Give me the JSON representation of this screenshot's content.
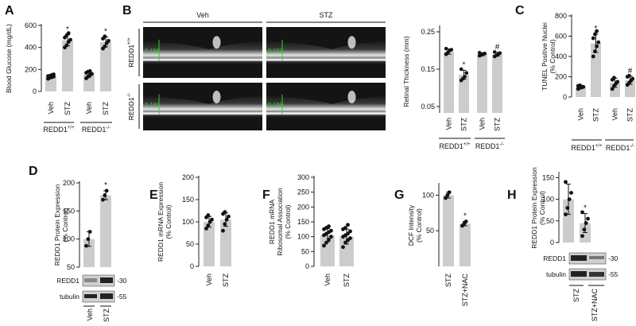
{
  "panels": {
    "A": {
      "letter": "A",
      "ylabel": "Blood Glucose (mg/dL)",
      "yticks": [
        "0",
        "200",
        "400",
        "600"
      ],
      "groups": [
        {
          "label": "Veh",
          "value": 135,
          "points": [
            115,
            125,
            130,
            135,
            140,
            142,
            150,
            155
          ],
          "err": 15,
          "mark": ""
        },
        {
          "label": "STZ",
          "value": 465,
          "points": [
            400,
            420,
            450,
            470,
            490,
            510,
            530
          ],
          "err": 50,
          "mark": "*"
        },
        {
          "label": "Veh",
          "value": 155,
          "points": [
            120,
            135,
            150,
            160,
            170,
            180,
            185
          ],
          "err": 25,
          "mark": ""
        },
        {
          "label": "STZ",
          "value": 450,
          "points": [
            390,
            410,
            440,
            460,
            480,
            500
          ],
          "err": 45,
          "mark": "*"
        }
      ],
      "genotypes": [
        "REDD1",
        "REDD1"
      ],
      "genotype_sups": [
        "+/+",
        "-/-"
      ]
    },
    "B": {
      "letter": "B",
      "col_labels": [
        "Veh",
        "STZ"
      ],
      "row_labels": [
        "REDD1",
        "REDD1"
      ],
      "row_sups": [
        "+/+",
        "-/-"
      ],
      "measurements": [
        "0.198",
        "0.122",
        "0.183",
        "0.188"
      ],
      "chart": {
        "ylabel": "Retinal Thickness (mm)",
        "yticks": [
          "0.05",
          "0.15",
          "0.25"
        ],
        "groups": [
          {
            "label": "Veh",
            "value": 0.197,
            "points": [
              0.19,
              0.195,
              0.2,
              0.202,
              0.205
            ],
            "err": 0.007,
            "mark": ""
          },
          {
            "label": "STZ",
            "value": 0.135,
            "points": [
              0.12,
              0.125,
              0.13,
              0.14,
              0.15
            ],
            "err": 0.012,
            "mark": "*"
          },
          {
            "label": "Veh",
            "value": 0.19,
            "points": [
              0.186,
              0.188,
              0.19,
              0.192,
              0.194
            ],
            "err": 0.004,
            "mark": ""
          },
          {
            "label": "STZ",
            "value": 0.19,
            "points": [
              0.184,
              0.187,
              0.19,
              0.193,
              0.196
            ],
            "err": 0.005,
            "mark": "#"
          }
        ],
        "genotypes": [
          "REDD1",
          "REDD1"
        ],
        "genotype_sups": [
          "+/+",
          "-/-"
        ]
      }
    },
    "C": {
      "letter": "C",
      "ylabel": "TUNEL Positive Nuclei (% Control)",
      "ylabel_lines": [
        "TUNEL Positive Nuclei",
        "(% Control)"
      ],
      "yticks": [
        "0",
        "200",
        "400",
        "600",
        "800"
      ],
      "groups": [
        {
          "label": "Veh",
          "value": 100,
          "points": [
            80,
            90,
            95,
            100,
            110,
            115
          ],
          "err": 15,
          "mark": ""
        },
        {
          "label": "STZ",
          "value": 530,
          "points": [
            400,
            450,
            500,
            540,
            580,
            620,
            650
          ],
          "err": 90,
          "mark": "*"
        },
        {
          "label": "Veh",
          "value": 140,
          "points": [
            80,
            110,
            130,
            150,
            170,
            190
          ],
          "err": 45,
          "mark": ""
        },
        {
          "label": "STZ",
          "value": 165,
          "points": [
            120,
            140,
            160,
            180,
            200,
            210
          ],
          "err": 40,
          "mark": "#"
        }
      ],
      "genotypes": [
        "REDD1",
        "REDD1"
      ],
      "genotype_sups": [
        "+/+",
        "-/-"
      ]
    },
    "D": {
      "letter": "D",
      "ylabel_lines": [
        "REDD1 Protein Expression",
        "(% Control)"
      ],
      "yticks": [
        "50",
        "100",
        "150",
        "200"
      ],
      "groups": [
        {
          "label": "Veh",
          "value": 100,
          "points": [
            88,
            100,
            113
          ],
          "err": 13,
          "mark": ""
        },
        {
          "label": "STZ",
          "value": 178,
          "points": [
            170,
            178,
            186
          ],
          "err": 8,
          "mark": "*"
        }
      ],
      "blots": [
        "REDD1",
        "tubulin"
      ],
      "mw": [
        "-30",
        "-55"
      ]
    },
    "E": {
      "letter": "E",
      "ylabel_lines": [
        "REDD1 mRNA Expression",
        "(% Control)"
      ],
      "yticks": [
        "0",
        "50",
        "100",
        "150",
        "200"
      ],
      "groups": [
        {
          "label": "Veh",
          "value": 100,
          "points": [
            85,
            92,
            100,
            105,
            110,
            115
          ],
          "err": 12,
          "mark": ""
        },
        {
          "label": "STZ",
          "value": 105,
          "points": [
            80,
            95,
            105,
            112,
            118,
            122
          ],
          "err": 15,
          "mark": ""
        }
      ]
    },
    "F": {
      "letter": "F",
      "ylabel_lines": [
        "REDD1 mRNA",
        "Ribosomal Association",
        "(% Control)"
      ],
      "yticks": [
        "0",
        "50",
        "100",
        "150",
        "200",
        "250",
        "300"
      ],
      "groups": [
        {
          "label": "Veh",
          "value": 105,
          "points": [
            70,
            80,
            90,
            100,
            105,
            110,
            115,
            120,
            125,
            130,
            135
          ],
          "err": 22,
          "mark": ""
        },
        {
          "label": "STZ",
          "value": 100,
          "points": [
            65,
            80,
            88,
            95,
            100,
            105,
            110,
            118,
            125,
            130,
            140
          ],
          "err": 25,
          "mark": ""
        }
      ]
    },
    "G": {
      "letter": "G",
      "ylabel_lines": [
        "DCF Intensity",
        "(% Control)"
      ],
      "yticks": [
        "50",
        "100"
      ],
      "groups": [
        {
          "label": "STZ",
          "value": 100,
          "points": [
            96,
            100,
            104
          ],
          "err": 4,
          "mark": ""
        },
        {
          "label": "STZ+NAC",
          "value": 60,
          "points": [
            57,
            60,
            63
          ],
          "err": 3,
          "mark": "*"
        }
      ]
    },
    "H": {
      "letter": "H",
      "ylabel_lines": [
        "REDD1 Protein Expression",
        "(% Control)"
      ],
      "yticks": [
        "0",
        "50",
        "100",
        "150"
      ],
      "groups": [
        {
          "label": "STZ",
          "value": 100,
          "points": [
            65,
            80,
            100,
            115,
            140
          ],
          "err": 35,
          "mark": ""
        },
        {
          "label": "STZ+NAC",
          "value": 45,
          "points": [
            15,
            30,
            45,
            55,
            70
          ],
          "err": 22,
          "mark": "*"
        }
      ],
      "blots": [
        "REDD1",
        "tubulin"
      ],
      "mw": [
        "-30",
        "-55"
      ]
    }
  },
  "colors": {
    "bar": "#cccccc",
    "point": "#111111",
    "axis": "#222222",
    "oct_bg": "#141414",
    "measure": "#3ec43e"
  }
}
